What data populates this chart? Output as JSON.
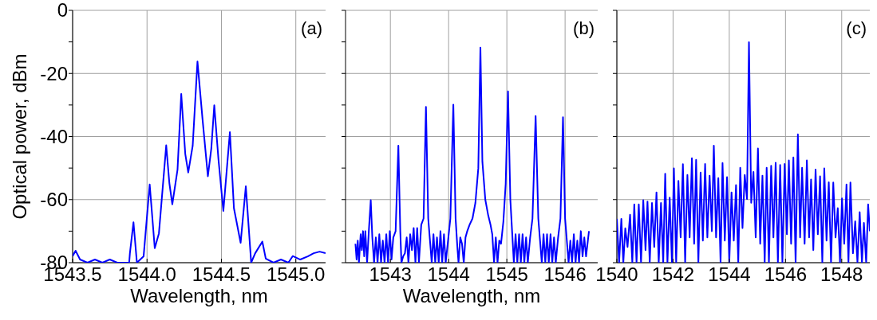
{
  "chart_data": [
    {
      "type": "line",
      "ylabel": "Optical power, dBm",
      "xlabel": "Wavelength, nm",
      "annotations": [
        "(a)"
      ],
      "xlim": [
        1543.5,
        1545.2
      ],
      "xticks": [
        1543.5,
        {
          "value": 1544.0,
          "label": "1544.0"
        },
        1544.5,
        {
          "value": 1545.0,
          "label": "1545.0"
        }
      ],
      "ylim": [
        -80,
        0
      ],
      "yticks": [
        -80,
        {
          "value": -70,
          "label": null
        },
        -60,
        {
          "value": -50,
          "label": null
        },
        -40,
        {
          "value": -30,
          "label": null
        },
        -20,
        {
          "value": -10,
          "label": null
        },
        0
      ],
      "grid": true,
      "series": [
        {
          "color": "#0000ff",
          "x": [
            1543.5,
            1543.52,
            1543.55,
            1543.6,
            1543.65,
            1543.7,
            1543.75,
            1543.8,
            1543.85,
            1543.88,
            1543.885,
            1543.909,
            1543.932,
            1543.977,
            1544.018,
            1544.052,
            1544.08,
            1544.129,
            1544.15,
            1544.17,
            1544.205,
            1544.23,
            1544.257,
            1544.277,
            1544.307,
            1544.339,
            1544.373,
            1544.409,
            1544.432,
            1544.452,
            1544.48,
            1544.513,
            1544.557,
            1544.584,
            1544.629,
            1544.664,
            1544.7,
            1544.727,
            1544.775,
            1544.798,
            1544.85,
            1544.9,
            1544.95,
            1544.979,
            1545.03,
            1545.08,
            1545.12,
            1545.16,
            1545.2
          ],
          "values": [
            -77.9,
            -76.2,
            -79,
            -80,
            -79,
            -80,
            -79,
            -80,
            -80,
            -80,
            -77,
            -67.2,
            -80,
            -78,
            -55.2,
            -75.4,
            -70.7,
            -42.8,
            -54.7,
            -61.5,
            -50.5,
            -26.5,
            -45.5,
            -51.4,
            -42.9,
            -16.2,
            -34.5,
            -52.6,
            -43.8,
            -30.1,
            -47.2,
            -63.6,
            -38.6,
            -62.7,
            -73.7,
            -55.8,
            -80,
            -77,
            -73.3,
            -78.7,
            -80,
            -79,
            -80,
            -77.9,
            -79,
            -78,
            -77,
            -76.5,
            -77
          ]
        }
      ]
    },
    {
      "type": "line",
      "xlabel": "Wavelength, nm",
      "annotations": [
        "(b)"
      ],
      "tick_labels": "x",
      "xlim": [
        1542.23,
        1546.56
      ],
      "xticks": [
        1543,
        1544,
        1545,
        1546
      ],
      "ylim": [
        -80,
        0
      ],
      "yticks": [
        -80,
        {
          "value": -70,
          "label": null
        },
        -60,
        {
          "value": -50,
          "label": null
        },
        -40,
        {
          "value": -30,
          "label": null
        },
        -20,
        {
          "value": -10,
          "label": null
        },
        0
      ],
      "grid": true,
      "series": [
        {
          "color": "#0000ff",
          "x": [
            1542.4,
            1542.42,
            1542.44,
            1542.46,
            1542.49,
            1542.51,
            1542.53,
            1542.55,
            1542.57,
            1542.6,
            1542.63,
            1542.663,
            1542.69,
            1542.72,
            1542.75,
            1542.78,
            1542.81,
            1542.84,
            1542.87,
            1542.9,
            1542.93,
            1542.96,
            1542.99,
            1543.02,
            1543.05,
            1543.09,
            1543.137,
            1543.17,
            1543.19,
            1543.22,
            1543.25,
            1543.28,
            1543.31,
            1543.34,
            1543.37,
            1543.4,
            1543.43,
            1543.46,
            1543.49,
            1543.53,
            1543.57,
            1543.611,
            1543.65,
            1543.68,
            1543.71,
            1543.74,
            1543.77,
            1543.8,
            1543.83,
            1543.86,
            1543.89,
            1543.92,
            1543.95,
            1543.99,
            1544.03,
            1544.081,
            1544.12,
            1544.15,
            1544.17,
            1544.2,
            1544.23,
            1544.26,
            1544.29,
            1544.32,
            1544.36,
            1544.41,
            1544.46,
            1544.51,
            1544.546,
            1544.58,
            1544.63,
            1544.68,
            1544.72,
            1544.75,
            1544.78,
            1544.81,
            1544.84,
            1544.87,
            1544.9,
            1544.94,
            1544.98,
            1545.02,
            1545.06,
            1545.09,
            1545.12,
            1545.15,
            1545.18,
            1545.21,
            1545.24,
            1545.27,
            1545.3,
            1545.33,
            1545.36,
            1545.4,
            1545.44,
            1545.494,
            1545.54,
            1545.57,
            1545.6,
            1545.63,
            1545.66,
            1545.69,
            1545.72,
            1545.75,
            1545.78,
            1545.81,
            1545.84,
            1545.88,
            1545.92,
            1545.964,
            1546.0,
            1546.03,
            1546.06,
            1546.09,
            1546.12,
            1546.15,
            1546.18,
            1546.21,
            1546.24,
            1546.27,
            1546.3,
            1546.33,
            1546.36,
            1546.41
          ],
          "values": [
            -74,
            -79,
            -73,
            -80,
            -71,
            -76,
            -70,
            -78,
            -70,
            -80,
            -70,
            -60.2,
            -72,
            -80,
            -72,
            -80,
            -71,
            -80,
            -73,
            -80,
            -71,
            -80,
            -70,
            -79,
            -72,
            -70,
            -42.9,
            -70,
            -80,
            -78,
            -77,
            -72,
            -80,
            -71,
            -76,
            -69,
            -80,
            -69,
            -80,
            -68,
            -66,
            -30.6,
            -66,
            -73,
            -80,
            -71,
            -80,
            -72,
            -80,
            -70,
            -80,
            -71,
            -80,
            -73,
            -66,
            -29.9,
            -66,
            -75,
            -80,
            -72,
            -74,
            -80,
            -72,
            -70,
            -68,
            -66,
            -61,
            -50,
            -11.8,
            -48,
            -60,
            -65,
            -68,
            -71,
            -80,
            -72,
            -80,
            -73,
            -74,
            -67,
            -55,
            -25.7,
            -60,
            -70,
            -80,
            -71,
            -80,
            -71,
            -80,
            -71,
            -80,
            -72,
            -80,
            -72,
            -66,
            -33.5,
            -66,
            -73,
            -80,
            -71,
            -80,
            -71,
            -80,
            -71,
            -80,
            -72,
            -80,
            -72,
            -66,
            -33.9,
            -66,
            -73,
            -80,
            -73,
            -80,
            -71,
            -80,
            -73,
            -80,
            -70,
            -78,
            -72,
            -78,
            -70
          ]
        }
      ]
    },
    {
      "type": "line",
      "annotations": [
        "(c)"
      ],
      "tick_labels": "x",
      "xlim": [
        1540,
        1549
      ],
      "xticks": [
        1540,
        1542,
        1544,
        1546,
        1548
      ],
      "ylim": [
        -80,
        0
      ],
      "yticks": [
        -80,
        {
          "value": -70,
          "label": null
        },
        -60,
        {
          "value": -50,
          "label": null
        },
        -40,
        {
          "value": -30,
          "label": null
        },
        -20,
        {
          "value": -10,
          "label": null
        },
        0
      ],
      "grid": true,
      "series": [
        {
          "color": "#0000ff",
          "x": [
            1540.0,
            1540.08,
            1540.16,
            1540.23,
            1540.3,
            1540.38,
            1540.47,
            1540.55,
            1540.62,
            1540.7,
            1540.78,
            1540.86,
            1540.94,
            1541.02,
            1541.09,
            1541.17,
            1541.25,
            1541.33,
            1541.41,
            1541.49,
            1541.57,
            1541.65,
            1541.72,
            1541.8,
            1541.88,
            1541.96,
            1542.03,
            1542.11,
            1542.19,
            1542.27,
            1542.35,
            1542.43,
            1542.51,
            1542.59,
            1542.67,
            1542.75,
            1542.82,
            1542.9,
            1542.98,
            1543.06,
            1543.14,
            1543.22,
            1543.3,
            1543.38,
            1543.45,
            1543.53,
            1543.61,
            1543.69,
            1543.76,
            1543.84,
            1543.92,
            1544.0,
            1544.08,
            1544.16,
            1544.24,
            1544.32,
            1544.39,
            1544.47,
            1544.55,
            1544.63,
            1544.7,
            1544.78,
            1544.86,
            1544.94,
            1545.02,
            1545.1,
            1545.18,
            1545.26,
            1545.33,
            1545.41,
            1545.49,
            1545.57,
            1545.65,
            1545.73,
            1545.81,
            1545.89,
            1545.97,
            1546.05,
            1546.12,
            1546.2,
            1546.28,
            1546.36,
            1546.44,
            1546.52,
            1546.59,
            1546.68,
            1546.76,
            1546.84,
            1546.91,
            1546.99,
            1547.07,
            1547.15,
            1547.23,
            1547.31,
            1547.38,
            1547.46,
            1547.54,
            1547.62,
            1547.7,
            1547.78,
            1547.86,
            1547.94,
            1548.01,
            1548.09,
            1548.17,
            1548.24,
            1548.31,
            1548.4,
            1548.48,
            1548.56,
            1548.64,
            1548.72,
            1548.79,
            1548.87,
            1548.94,
            1549.0
          ],
          "values": [
            -66.1,
            -80,
            -66.1,
            -80,
            -69.1,
            -75,
            -64.8,
            -80,
            -61.5,
            -80,
            -61.5,
            -80,
            -60.2,
            -76,
            -60.6,
            -80,
            -61.1,
            -75,
            -57.7,
            -80,
            -61.1,
            -80,
            -51.8,
            -80,
            -59.4,
            -80,
            -50.1,
            -80,
            -54.1,
            -72,
            -48.8,
            -80,
            -52.2,
            -72,
            -46.9,
            -74,
            -47.4,
            -80,
            -51.4,
            -73,
            -48.7,
            -72,
            -52.4,
            -70,
            -42.9,
            -72,
            -53.2,
            -80,
            -48.4,
            -73,
            -52.9,
            -80,
            -57.7,
            -73,
            -55.4,
            -80,
            -49.9,
            -69,
            -52.2,
            -59.8,
            -10.1,
            -61,
            -51.2,
            -72,
            -43.8,
            -74,
            -52.4,
            -80,
            -49.9,
            -80,
            -49.3,
            -72,
            -48.3,
            -80,
            -49.0,
            -80,
            -48.7,
            -71,
            -47.6,
            -74,
            -46.6,
            -80,
            -39.3,
            -72,
            -49.9,
            -74,
            -47.6,
            -72,
            -53.6,
            -76,
            -50.5,
            -71,
            -52.6,
            -80,
            -50.1,
            -73,
            -54.5,
            -80,
            -54.6,
            -72,
            -62.7,
            -80,
            -59.6,
            -74,
            -55.2,
            -80,
            -54.6,
            -77,
            -66.9,
            -80,
            -64.0,
            -80,
            -67.4,
            -80,
            -61.5,
            -70
          ]
        }
      ]
    }
  ]
}
